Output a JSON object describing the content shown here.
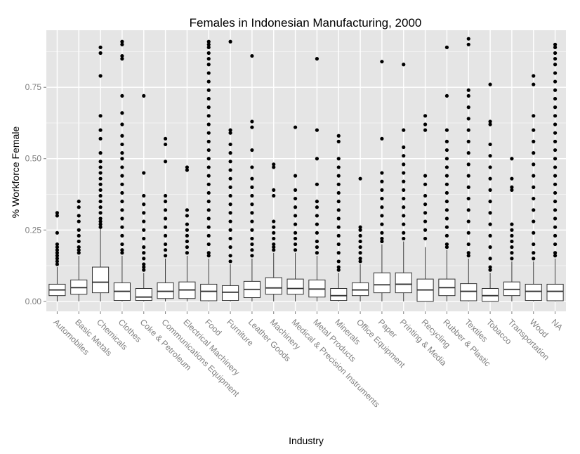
{
  "chart_data": {
    "type": "box",
    "title": "Females in Indonesian Manufacturing, 2000",
    "xlabel": "Industry",
    "ylabel": "% Workforce Female",
    "ylim": [
      -0.035,
      0.95
    ],
    "yticks": [
      0.0,
      0.25,
      0.5,
      0.75
    ],
    "ytick_labels": [
      "0.00",
      "0.25",
      "0.50",
      "0.75"
    ],
    "grid": true,
    "colors": {
      "panel": "#e5e5e5",
      "grid_major": "#ffffff",
      "grid_minor": "#f2f2f2",
      "box_fill": "#ffffff",
      "box_stroke": "#333333",
      "outlier": "#000000",
      "tick_label": "#7f7f7f"
    },
    "categories": [
      {
        "name": "Automobiles",
        "min": 0.0,
        "q1": 0.02,
        "median": 0.04,
        "q3": 0.06,
        "max": 0.12,
        "outliers": [
          0.31,
          0.3,
          0.24,
          0.2,
          0.19,
          0.18,
          0.17,
          0.16,
          0.15,
          0.14,
          0.13
        ]
      },
      {
        "name": "Basic Metals",
        "min": 0.0,
        "q1": 0.025,
        "median": 0.048,
        "q3": 0.075,
        "max": 0.16,
        "outliers": [
          0.35,
          0.33,
          0.3,
          0.28,
          0.25,
          0.23,
          0.21,
          0.19,
          0.18,
          0.17
        ]
      },
      {
        "name": "Chemicals",
        "min": 0.0,
        "q1": 0.03,
        "median": 0.067,
        "q3": 0.12,
        "max": 0.255,
        "outliers": [
          0.89,
          0.87,
          0.79,
          0.65,
          0.6,
          0.57,
          0.52,
          0.49,
          0.47,
          0.45,
          0.43,
          0.41,
          0.39,
          0.37,
          0.35,
          0.33,
          0.31,
          0.29,
          0.28,
          0.27,
          0.26
        ]
      },
      {
        "name": "Clothes",
        "min": 0.0,
        "q1": 0.003,
        "median": 0.035,
        "q3": 0.065,
        "max": 0.16,
        "outliers": [
          0.91,
          0.9,
          0.86,
          0.85,
          0.72,
          0.66,
          0.62,
          0.58,
          0.55,
          0.52,
          0.5,
          0.47,
          0.44,
          0.41,
          0.38,
          0.35,
          0.32,
          0.29,
          0.26,
          0.23,
          0.2,
          0.18,
          0.17
        ]
      },
      {
        "name": "Coke & Petroleum",
        "min": 0.0,
        "q1": 0.003,
        "median": 0.015,
        "q3": 0.045,
        "max": 0.1,
        "outliers": [
          0.72,
          0.45,
          0.37,
          0.34,
          0.31,
          0.28,
          0.25,
          0.22,
          0.19,
          0.17,
          0.15,
          0.13,
          0.12,
          0.11
        ]
      },
      {
        "name": "Communications Equipment",
        "min": 0.0,
        "q1": 0.01,
        "median": 0.035,
        "q3": 0.065,
        "max": 0.15,
        "outliers": [
          0.57,
          0.55,
          0.49,
          0.37,
          0.35,
          0.32,
          0.29,
          0.26,
          0.23,
          0.2,
          0.18,
          0.16
        ]
      },
      {
        "name": "Electrical Machinery",
        "min": 0.0,
        "q1": 0.01,
        "median": 0.04,
        "q3": 0.068,
        "max": 0.16,
        "outliers": [
          0.47,
          0.46,
          0.32,
          0.3,
          0.27,
          0.25,
          0.23,
          0.21,
          0.19,
          0.17
        ]
      },
      {
        "name": "Food",
        "min": 0.0,
        "q1": 0.002,
        "median": 0.035,
        "q3": 0.06,
        "max": 0.15,
        "outliers": [
          0.91,
          0.9,
          0.89,
          0.87,
          0.85,
          0.83,
          0.8,
          0.77,
          0.74,
          0.71,
          0.68,
          0.65,
          0.62,
          0.59,
          0.56,
          0.53,
          0.5,
          0.47,
          0.44,
          0.41,
          0.38,
          0.35,
          0.32,
          0.29,
          0.26,
          0.23,
          0.2,
          0.17,
          0.16
        ]
      },
      {
        "name": "Furniture",
        "min": 0.0,
        "q1": 0.003,
        "median": 0.032,
        "q3": 0.055,
        "max": 0.13,
        "outliers": [
          0.91,
          0.6,
          0.59,
          0.55,
          0.52,
          0.49,
          0.46,
          0.43,
          0.4,
          0.37,
          0.34,
          0.31,
          0.28,
          0.25,
          0.22,
          0.19,
          0.16,
          0.14
        ]
      },
      {
        "name": "Leather Goods",
        "min": 0.0,
        "q1": 0.013,
        "median": 0.042,
        "q3": 0.07,
        "max": 0.15,
        "outliers": [
          0.86,
          0.63,
          0.61,
          0.53,
          0.47,
          0.43,
          0.4,
          0.37,
          0.34,
          0.31,
          0.28,
          0.25,
          0.22,
          0.2,
          0.18,
          0.16
        ]
      },
      {
        "name": "Machinery",
        "min": 0.0,
        "q1": 0.025,
        "median": 0.047,
        "q3": 0.083,
        "max": 0.17,
        "outliers": [
          0.48,
          0.47,
          0.39,
          0.37,
          0.28,
          0.26,
          0.24,
          0.22,
          0.2,
          0.19,
          0.18
        ]
      },
      {
        "name": "Medical & Precision Instruments",
        "min": 0.0,
        "q1": 0.025,
        "median": 0.045,
        "q3": 0.078,
        "max": 0.17,
        "outliers": [
          0.61,
          0.44,
          0.39,
          0.36,
          0.33,
          0.3,
          0.27,
          0.24,
          0.22,
          0.2,
          0.18
        ]
      },
      {
        "name": "Metal Products",
        "min": 0.0,
        "q1": 0.015,
        "median": 0.043,
        "q3": 0.075,
        "max": 0.16,
        "outliers": [
          0.85,
          0.6,
          0.5,
          0.41,
          0.35,
          0.33,
          0.3,
          0.27,
          0.24,
          0.21,
          0.19,
          0.17
        ]
      },
      {
        "name": "Minerals",
        "min": 0.0,
        "q1": 0.003,
        "median": 0.02,
        "q3": 0.045,
        "max": 0.1,
        "outliers": [
          0.58,
          0.56,
          0.5,
          0.47,
          0.44,
          0.41,
          0.38,
          0.35,
          0.32,
          0.29,
          0.26,
          0.23,
          0.2,
          0.17,
          0.14,
          0.12,
          0.11
        ]
      },
      {
        "name": "Office Equipment",
        "min": 0.0,
        "q1": 0.02,
        "median": 0.04,
        "q3": 0.065,
        "max": 0.13,
        "outliers": [
          0.43,
          0.26,
          0.25,
          0.23,
          0.21,
          0.19,
          0.17,
          0.15,
          0.14
        ]
      },
      {
        "name": "Paper",
        "min": 0.0,
        "q1": 0.03,
        "median": 0.058,
        "q3": 0.1,
        "max": 0.2,
        "outliers": [
          0.84,
          0.57,
          0.45,
          0.42,
          0.39,
          0.36,
          0.33,
          0.3,
          0.27,
          0.24,
          0.22,
          0.21
        ]
      },
      {
        "name": "Printing & Media",
        "min": 0.0,
        "q1": 0.03,
        "median": 0.06,
        "q3": 0.1,
        "max": 0.21,
        "outliers": [
          0.83,
          0.6,
          0.54,
          0.51,
          0.48,
          0.45,
          0.42,
          0.39,
          0.36,
          0.33,
          0.3,
          0.27,
          0.24,
          0.22
        ]
      },
      {
        "name": "Recycling",
        "min": 0.0,
        "q1": 0.0,
        "median": 0.04,
        "q3": 0.078,
        "max": 0.19,
        "outliers": [
          0.65,
          0.62,
          0.6,
          0.44,
          0.41,
          0.37,
          0.34,
          0.31,
          0.28,
          0.25,
          0.22
        ]
      },
      {
        "name": "Rubber & Plastic",
        "min": 0.0,
        "q1": 0.02,
        "median": 0.048,
        "q3": 0.078,
        "max": 0.18,
        "outliers": [
          0.89,
          0.72,
          0.6,
          0.56,
          0.53,
          0.5,
          0.47,
          0.44,
          0.41,
          0.38,
          0.35,
          0.32,
          0.29,
          0.26,
          0.23,
          0.2,
          0.19
        ]
      },
      {
        "name": "Textiles",
        "min": 0.0,
        "q1": 0.002,
        "median": 0.035,
        "q3": 0.062,
        "max": 0.15,
        "outliers": [
          0.92,
          0.9,
          0.74,
          0.72,
          0.68,
          0.64,
          0.6,
          0.56,
          0.52,
          0.48,
          0.44,
          0.4,
          0.36,
          0.32,
          0.28,
          0.24,
          0.2,
          0.17,
          0.16
        ]
      },
      {
        "name": "Tobacco",
        "min": 0.0,
        "q1": 0.0,
        "median": 0.02,
        "q3": 0.045,
        "max": 0.1,
        "outliers": [
          0.76,
          0.63,
          0.62,
          0.55,
          0.51,
          0.47,
          0.43,
          0.39,
          0.35,
          0.31,
          0.27,
          0.23,
          0.19,
          0.15,
          0.12,
          0.11
        ]
      },
      {
        "name": "Transportation",
        "min": 0.0,
        "q1": 0.02,
        "median": 0.042,
        "q3": 0.068,
        "max": 0.14,
        "outliers": [
          0.5,
          0.43,
          0.4,
          0.39,
          0.27,
          0.25,
          0.23,
          0.21,
          0.19,
          0.17,
          0.15
        ]
      },
      {
        "name": "Wood",
        "min": 0.0,
        "q1": 0.003,
        "median": 0.035,
        "q3": 0.06,
        "max": 0.14,
        "outliers": [
          0.79,
          0.76,
          0.65,
          0.6,
          0.56,
          0.52,
          0.48,
          0.44,
          0.4,
          0.36,
          0.32,
          0.28,
          0.24,
          0.2,
          0.17,
          0.15
        ]
      },
      {
        "name": "NA",
        "min": 0.0,
        "q1": 0.002,
        "median": 0.035,
        "q3": 0.06,
        "max": 0.15,
        "outliers": [
          0.9,
          0.89,
          0.87,
          0.85,
          0.83,
          0.8,
          0.77,
          0.74,
          0.71,
          0.68,
          0.65,
          0.62,
          0.59,
          0.56,
          0.53,
          0.5,
          0.47,
          0.44,
          0.41,
          0.38,
          0.35,
          0.32,
          0.29,
          0.26,
          0.23,
          0.2,
          0.17,
          0.16
        ]
      }
    ]
  }
}
